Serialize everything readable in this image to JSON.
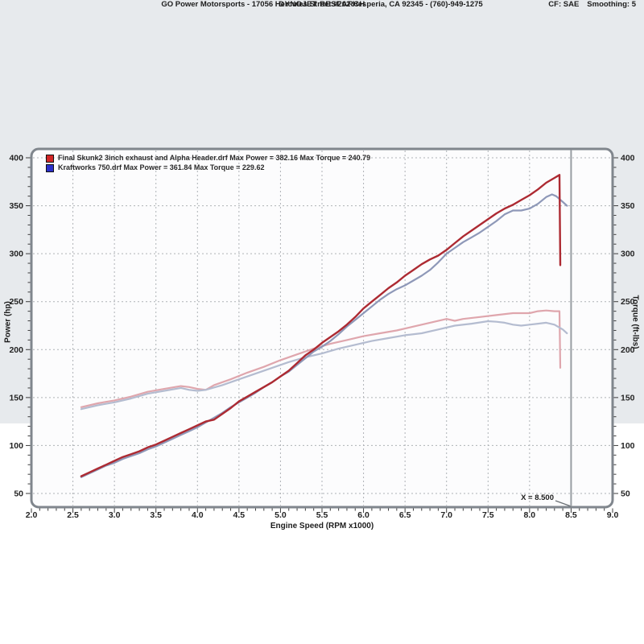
{
  "header": {
    "title": "DYNOJET RESEARCH",
    "subtitle": "GO Power Motorsports - 17056 Hercules Street #202 Hesperia, CA 92345 - (760)-949-1275",
    "correction": "CF: SAE",
    "smoothing": "Smoothing: 5"
  },
  "legend": [
    {
      "color": "#d22626",
      "label": "Final Skunk2 3inch exhaust and Alpha Header.drf Max Power = 382.16 Max Torque = 240.79"
    },
    {
      "color": "#2b2fc9",
      "label": "Kraftworks 750.drf Max Power = 361.84 Max Torque = 229.62"
    }
  ],
  "cursor": {
    "label": "X = 8.500",
    "x": 8.5
  },
  "chart_data": {
    "type": "line",
    "title": "",
    "xlabel": "Engine Speed (RPM x1000)",
    "ylabel_left": "Power (hp)",
    "ylabel_right": "Torque (ft-lbs)",
    "xlim": [
      2.0,
      9.0
    ],
    "ylim": [
      50,
      400
    ],
    "grid": true,
    "legend_position": "top-left",
    "x_ticks": [
      "2.0",
      "2.5",
      "3.0",
      "3.5",
      "4.0",
      "4.5",
      "5.0",
      "5.5",
      "6.0",
      "6.5",
      "7.0",
      "7.5",
      "8.0",
      "8.5",
      "9.0"
    ],
    "y_ticks": [
      "400",
      "350",
      "300",
      "250",
      "200",
      "150",
      "100",
      "50"
    ],
    "max_values": {
      "skunk2_power": 382.16,
      "skunk2_torque": 240.79,
      "kraftworks_power": 361.84,
      "kraftworks_torque": 229.62
    },
    "series": [
      {
        "id": "skunk2-torque",
        "name": "Final Skunk2 3inch exhaust and Alpha Header.drf",
        "measure": "Torque (ft-lbs)",
        "color": "#dfa6ad",
        "width": 2.2,
        "points": [
          [
            2.6,
            140
          ],
          [
            2.8,
            144
          ],
          [
            3.0,
            147
          ],
          [
            3.2,
            151
          ],
          [
            3.4,
            156
          ],
          [
            3.6,
            159
          ],
          [
            3.8,
            162
          ],
          [
            3.9,
            161
          ],
          [
            4.0,
            159
          ],
          [
            4.1,
            158
          ],
          [
            4.2,
            163
          ],
          [
            4.4,
            169
          ],
          [
            4.6,
            176
          ],
          [
            4.8,
            182
          ],
          [
            5.0,
            189
          ],
          [
            5.2,
            195
          ],
          [
            5.4,
            201
          ],
          [
            5.6,
            206
          ],
          [
            5.8,
            210
          ],
          [
            6.0,
            214
          ],
          [
            6.2,
            217
          ],
          [
            6.4,
            220
          ],
          [
            6.6,
            224
          ],
          [
            6.8,
            228
          ],
          [
            7.0,
            232
          ],
          [
            7.1,
            230
          ],
          [
            7.2,
            232
          ],
          [
            7.4,
            234
          ],
          [
            7.6,
            236
          ],
          [
            7.8,
            238
          ],
          [
            8.0,
            238
          ],
          [
            8.1,
            240
          ],
          [
            8.2,
            240.79
          ],
          [
            8.3,
            240
          ],
          [
            8.36,
            240
          ],
          [
            8.37,
            181
          ]
        ]
      },
      {
        "id": "kraftworks-torque",
        "name": "Kraftworks 750.drf",
        "measure": "Torque (ft-lbs)",
        "color": "#b4bcd0",
        "width": 2.2,
        "points": [
          [
            2.6,
            138
          ],
          [
            2.8,
            142
          ],
          [
            3.0,
            145
          ],
          [
            3.2,
            149
          ],
          [
            3.4,
            154
          ],
          [
            3.6,
            157
          ],
          [
            3.8,
            160
          ],
          [
            3.9,
            158
          ],
          [
            4.0,
            157
          ],
          [
            4.1,
            158
          ],
          [
            4.3,
            163
          ],
          [
            4.5,
            169
          ],
          [
            4.7,
            175
          ],
          [
            4.9,
            181
          ],
          [
            5.1,
            187
          ],
          [
            5.3,
            192
          ],
          [
            5.5,
            196
          ],
          [
            5.7,
            201
          ],
          [
            5.9,
            205
          ],
          [
            6.1,
            209
          ],
          [
            6.3,
            212
          ],
          [
            6.5,
            215
          ],
          [
            6.7,
            217
          ],
          [
            6.9,
            221
          ],
          [
            7.1,
            225
          ],
          [
            7.3,
            227
          ],
          [
            7.5,
            229.62
          ],
          [
            7.6,
            229
          ],
          [
            7.7,
            228
          ],
          [
            7.8,
            226
          ],
          [
            7.9,
            225
          ],
          [
            8.0,
            226
          ],
          [
            8.1,
            227
          ],
          [
            8.2,
            228
          ],
          [
            8.3,
            226
          ],
          [
            8.4,
            221
          ],
          [
            8.45,
            217
          ]
        ]
      },
      {
        "id": "kraftworks-power",
        "name": "Kraftworks 750.drf",
        "measure": "Power (hp)",
        "color": "#8e98b8",
        "width": 2.2,
        "points": [
          [
            2.6,
            67
          ],
          [
            2.7,
            71
          ],
          [
            2.8,
            75
          ],
          [
            2.9,
            79
          ],
          [
            3.0,
            82
          ],
          [
            3.1,
            86
          ],
          [
            3.2,
            89
          ],
          [
            3.3,
            92
          ],
          [
            3.4,
            96
          ],
          [
            3.5,
            99
          ],
          [
            3.6,
            103
          ],
          [
            3.7,
            107
          ],
          [
            3.8,
            111
          ],
          [
            3.9,
            115
          ],
          [
            4.0,
            119
          ],
          [
            4.1,
            124
          ],
          [
            4.2,
            129
          ],
          [
            4.3,
            134
          ],
          [
            4.4,
            140
          ],
          [
            4.5,
            145
          ],
          [
            4.6,
            150
          ],
          [
            4.7,
            155
          ],
          [
            4.8,
            161
          ],
          [
            4.9,
            166
          ],
          [
            5.0,
            172
          ],
          [
            5.1,
            177
          ],
          [
            5.2,
            184
          ],
          [
            5.3,
            191
          ],
          [
            5.4,
            198
          ],
          [
            5.5,
            203
          ],
          [
            5.6,
            209
          ],
          [
            5.7,
            216
          ],
          [
            5.8,
            224
          ],
          [
            5.9,
            231
          ],
          [
            6.0,
            238
          ],
          [
            6.1,
            245
          ],
          [
            6.2,
            252
          ],
          [
            6.3,
            258
          ],
          [
            6.4,
            263
          ],
          [
            6.5,
            267
          ],
          [
            6.6,
            272
          ],
          [
            6.7,
            277
          ],
          [
            6.8,
            283
          ],
          [
            6.9,
            291
          ],
          [
            7.0,
            300
          ],
          [
            7.1,
            306
          ],
          [
            7.2,
            312
          ],
          [
            7.3,
            317
          ],
          [
            7.4,
            322
          ],
          [
            7.5,
            328
          ],
          [
            7.6,
            334
          ],
          [
            7.7,
            341
          ],
          [
            7.8,
            345
          ],
          [
            7.9,
            345
          ],
          [
            8.0,
            347
          ],
          [
            8.1,
            352
          ],
          [
            8.2,
            359
          ],
          [
            8.27,
            361.84
          ],
          [
            8.32,
            360
          ],
          [
            8.4,
            354
          ],
          [
            8.45,
            350
          ]
        ]
      },
      {
        "id": "skunk2-power",
        "name": "Final Skunk2 3inch exhaust and Alpha Header.drf",
        "measure": "Power (hp)",
        "color": "#ad2a32",
        "width": 2.4,
        "points": [
          [
            2.6,
            68
          ],
          [
            2.7,
            72
          ],
          [
            2.8,
            76
          ],
          [
            2.9,
            80
          ],
          [
            3.0,
            84
          ],
          [
            3.1,
            88
          ],
          [
            3.2,
            91
          ],
          [
            3.3,
            94
          ],
          [
            3.4,
            98
          ],
          [
            3.5,
            101
          ],
          [
            3.6,
            105
          ],
          [
            3.7,
            109
          ],
          [
            3.8,
            113
          ],
          [
            3.9,
            117
          ],
          [
            4.0,
            121
          ],
          [
            4.1,
            125
          ],
          [
            4.2,
            127
          ],
          [
            4.3,
            133
          ],
          [
            4.4,
            139
          ],
          [
            4.5,
            146
          ],
          [
            4.6,
            151
          ],
          [
            4.7,
            156
          ],
          [
            4.8,
            161
          ],
          [
            4.9,
            166
          ],
          [
            5.0,
            172
          ],
          [
            5.1,
            178
          ],
          [
            5.2,
            186
          ],
          [
            5.3,
            194
          ],
          [
            5.4,
            200
          ],
          [
            5.5,
            207
          ],
          [
            5.6,
            213
          ],
          [
            5.7,
            219
          ],
          [
            5.8,
            226
          ],
          [
            5.9,
            234
          ],
          [
            6.0,
            243
          ],
          [
            6.1,
            250
          ],
          [
            6.2,
            257
          ],
          [
            6.3,
            264
          ],
          [
            6.4,
            270
          ],
          [
            6.5,
            277
          ],
          [
            6.6,
            283
          ],
          [
            6.7,
            289
          ],
          [
            6.8,
            294
          ],
          [
            6.9,
            298
          ],
          [
            7.0,
            304
          ],
          [
            7.1,
            311
          ],
          [
            7.2,
            318
          ],
          [
            7.3,
            324
          ],
          [
            7.4,
            330
          ],
          [
            7.5,
            336
          ],
          [
            7.6,
            342
          ],
          [
            7.7,
            347
          ],
          [
            7.8,
            351
          ],
          [
            7.9,
            356
          ],
          [
            8.0,
            361
          ],
          [
            8.1,
            367
          ],
          [
            8.2,
            374
          ],
          [
            8.3,
            379
          ],
          [
            8.36,
            382.16
          ],
          [
            8.37,
            288
          ]
        ]
      }
    ]
  }
}
